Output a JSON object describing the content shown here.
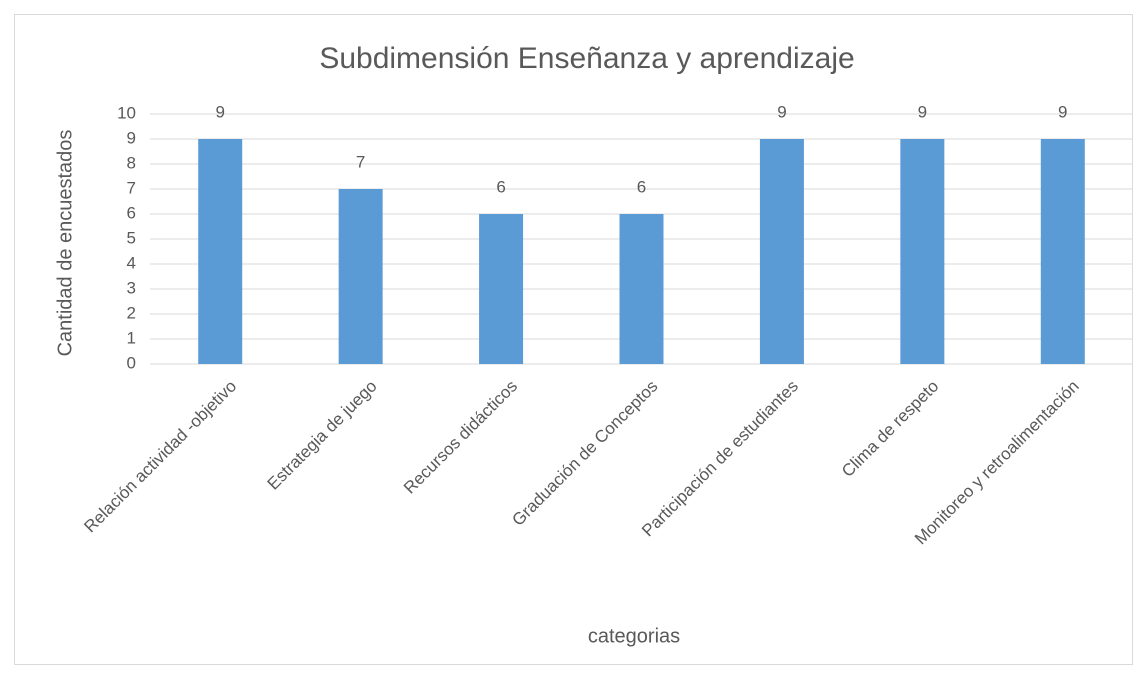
{
  "chart_data": {
    "type": "bar",
    "title": "Subdimensión Enseñanza y aprendizaje",
    "x_label": "categorias",
    "y_label": "Cantidad de encuestados",
    "categories": [
      "Relación actividad -objetivo",
      "Estrategia de juego",
      "Recursos didácticos",
      "Graduación de Conceptos",
      "Participación de estudiantes",
      "Clima de respeto",
      "Monitoreo y retroalimentación"
    ],
    "values": [
      9,
      7,
      6,
      6,
      9,
      9,
      9
    ],
    "color": "#5b9bd5",
    "ylim": [
      0,
      10
    ],
    "yticks": [
      0,
      1,
      2,
      3,
      4,
      5,
      6,
      7,
      8,
      9,
      10
    ],
    "grid": true
  }
}
